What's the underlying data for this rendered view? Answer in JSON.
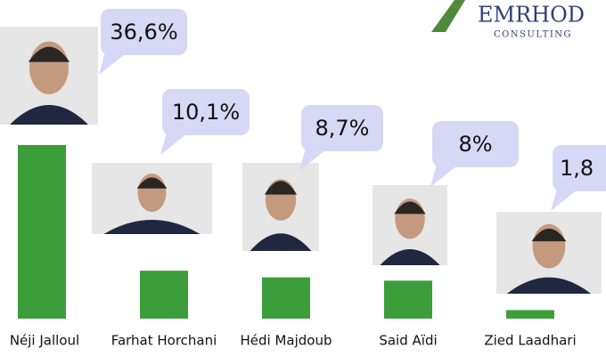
{
  "logo": {
    "name": "EMRHOD",
    "tagline": "CONSULTING"
  },
  "chart_data": {
    "type": "bar",
    "categories": [
      "Néji Jalloul",
      "Farhat Horchani",
      "Hédi Majdoub",
      "Said Aïdi",
      "Zied Laadhari"
    ],
    "values": [
      36.6,
      10.1,
      8.7,
      8,
      1.8
    ],
    "value_labels": [
      "36,6%",
      "10,1%",
      "8,7%",
      "8%",
      "1,8"
    ],
    "color": "#3b9e3b"
  }
}
